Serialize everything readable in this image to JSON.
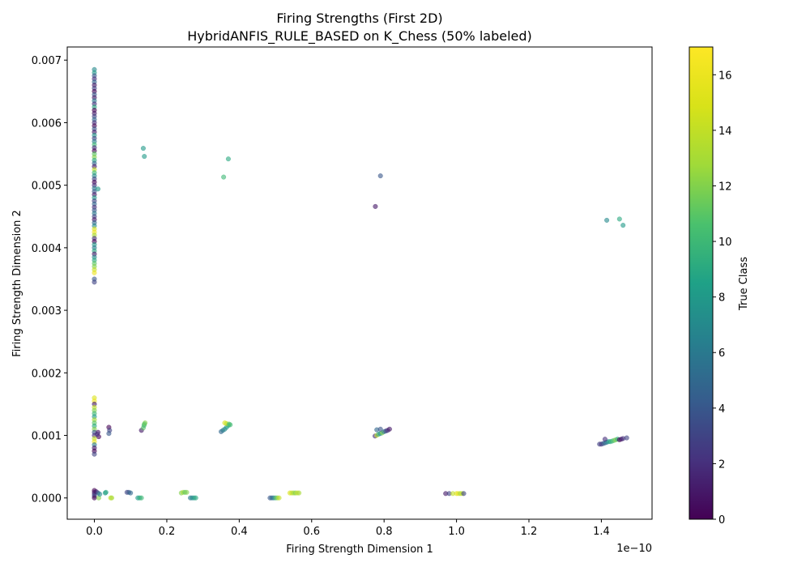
{
  "chart_data": {
    "type": "scatter",
    "title": "Firing Strengths (First 2D)",
    "subtitle": "HybridANFIS_RULE_BASED on K_Chess (50% labeled)",
    "xlabel": "Firing Strength Dimension 1",
    "ylabel": "Firing Strength Dimension 2",
    "x_offset_text": "1e−10",
    "x_scale": 1e-10,
    "xlim": [
      -0.075,
      1.54
    ],
    "ylim": [
      -0.00034,
      0.00721
    ],
    "xticks": [
      {
        "value": 0.0,
        "label": "0.0"
      },
      {
        "value": 0.2,
        "label": "0.2"
      },
      {
        "value": 0.4,
        "label": "0.4"
      },
      {
        "value": 0.6,
        "label": "0.6"
      },
      {
        "value": 0.8,
        "label": "0.8"
      },
      {
        "value": 1.0,
        "label": "1.0"
      },
      {
        "value": 1.2,
        "label": "1.2"
      },
      {
        "value": 1.4,
        "label": "1.4"
      }
    ],
    "yticks": [
      {
        "value": 0.0,
        "label": "0.000"
      },
      {
        "value": 0.001,
        "label": "0.001"
      },
      {
        "value": 0.002,
        "label": "0.002"
      },
      {
        "value": 0.003,
        "label": "0.003"
      },
      {
        "value": 0.004,
        "label": "0.004"
      },
      {
        "value": 0.005,
        "label": "0.005"
      },
      {
        "value": 0.006,
        "label": "0.006"
      },
      {
        "value": 0.007,
        "label": "0.007"
      }
    ],
    "colorbar": {
      "label": "True Class",
      "colormap": "viridis",
      "range": [
        0,
        17
      ],
      "ticks": [
        {
          "value": 0,
          "label": "0"
        },
        {
          "value": 2,
          "label": "2"
        },
        {
          "value": 4,
          "label": "4"
        },
        {
          "value": 6,
          "label": "6"
        },
        {
          "value": 8,
          "label": "8"
        },
        {
          "value": 10,
          "label": "10"
        },
        {
          "value": 12,
          "label": "12"
        },
        {
          "value": 14,
          "label": "14"
        },
        {
          "value": 16,
          "label": "16"
        }
      ]
    },
    "marker_alpha": 0.6,
    "grid": false,
    "points": [
      [
        0.0,
        0.00685,
        7
      ],
      [
        0.0,
        0.0068,
        8
      ],
      [
        0.0,
        0.00675,
        4
      ],
      [
        0.0,
        0.0067,
        2
      ],
      [
        0.0,
        0.00665,
        5
      ],
      [
        0.0,
        0.0066,
        1
      ],
      [
        0.0,
        0.00655,
        3
      ],
      [
        0.0,
        0.0065,
        0
      ],
      [
        0.0,
        0.00645,
        4
      ],
      [
        0.0,
        0.0064,
        1
      ],
      [
        0.0,
        0.00635,
        6
      ],
      [
        0.0,
        0.0063,
        2
      ],
      [
        0.0,
        0.00625,
        9
      ],
      [
        0.0,
        0.0062,
        0
      ],
      [
        0.0,
        0.00615,
        1
      ],
      [
        0.0,
        0.0061,
        3
      ],
      [
        0.0,
        0.00605,
        5
      ],
      [
        0.0,
        0.006,
        2
      ],
      [
        0.0,
        0.00595,
        0
      ],
      [
        0.0,
        0.0059,
        4
      ],
      [
        0.0,
        0.00585,
        1
      ],
      [
        0.0,
        0.0058,
        8
      ],
      [
        0.0,
        0.00575,
        3
      ],
      [
        0.0,
        0.0057,
        6
      ],
      [
        0.0,
        0.00565,
        10
      ],
      [
        0.0,
        0.0056,
        2
      ],
      [
        0.0,
        0.00555,
        0
      ],
      [
        0.0,
        0.0055,
        11
      ],
      [
        0.0,
        0.00545,
        12
      ],
      [
        0.0,
        0.0054,
        9
      ],
      [
        0.0,
        0.00535,
        5
      ],
      [
        0.0,
        0.0053,
        1
      ],
      [
        0.0,
        0.00525,
        14
      ],
      [
        0.0,
        0.0052,
        10
      ],
      [
        0.0,
        0.00515,
        7
      ],
      [
        0.0,
        0.0051,
        3
      ],
      [
        0.0,
        0.00505,
        0
      ],
      [
        0.0,
        0.005,
        2
      ],
      [
        0.0,
        0.00495,
        6
      ],
      [
        0.0,
        0.0049,
        4
      ],
      [
        0.0,
        0.00485,
        1
      ],
      [
        0.0,
        0.0048,
        8
      ],
      [
        0.0,
        0.00475,
        3
      ],
      [
        0.0,
        0.0047,
        5
      ],
      [
        0.0,
        0.00465,
        2
      ],
      [
        0.0,
        0.0046,
        4
      ],
      [
        0.0,
        0.00455,
        6
      ],
      [
        0.0,
        0.0045,
        3
      ],
      [
        0.0,
        0.00445,
        1
      ],
      [
        0.0,
        0.0044,
        5
      ],
      [
        0.0,
        0.00435,
        7
      ],
      [
        0.0,
        0.0043,
        15
      ],
      [
        0.0,
        0.00425,
        16
      ],
      [
        0.0,
        0.0042,
        13
      ],
      [
        0.0,
        0.00415,
        2
      ],
      [
        0.0,
        0.0041,
        0
      ],
      [
        0.0,
        0.00405,
        8
      ],
      [
        0.0,
        0.004,
        6
      ],
      [
        0.0,
        0.00395,
        9
      ],
      [
        0.0,
        0.0039,
        1
      ],
      [
        0.0,
        0.00385,
        7
      ],
      [
        0.0,
        0.0038,
        9
      ],
      [
        0.0,
        0.00375,
        11
      ],
      [
        0.0,
        0.0037,
        12
      ],
      [
        0.0,
        0.00365,
        14
      ],
      [
        0.0,
        0.0036,
        16
      ],
      [
        0.0,
        0.0035,
        4
      ],
      [
        0.0,
        0.00345,
        3
      ],
      [
        0.01,
        0.00494,
        8
      ],
      [
        0.135,
        0.00559,
        8
      ],
      [
        0.138,
        0.00546,
        8
      ],
      [
        0.37,
        0.00542,
        9
      ],
      [
        0.357,
        0.00513,
        10
      ],
      [
        0.79,
        0.00515,
        4
      ],
      [
        0.776,
        0.00466,
        1
      ],
      [
        1.415,
        0.00444,
        7
      ],
      [
        1.45,
        0.00446,
        9
      ],
      [
        1.46,
        0.00436,
        8
      ],
      [
        0.0,
        0.0016,
        15
      ],
      [
        0.0,
        0.00155,
        16
      ],
      [
        0.0,
        0.0015,
        1
      ],
      [
        0.0,
        0.00145,
        14
      ],
      [
        0.0,
        0.0014,
        12
      ],
      [
        0.0,
        0.00135,
        10
      ],
      [
        0.0,
        0.0013,
        8
      ],
      [
        0.0,
        0.00125,
        13
      ],
      [
        0.0,
        0.0012,
        11
      ],
      [
        0.0,
        0.00115,
        9
      ],
      [
        0.0,
        0.0011,
        12
      ],
      [
        0.0,
        0.00105,
        4
      ],
      [
        0.0,
        0.001,
        2
      ],
      [
        0.0,
        0.00095,
        14
      ],
      [
        0.0,
        0.0009,
        16
      ],
      [
        0.0,
        0.00085,
        6
      ],
      [
        0.0,
        0.0008,
        1
      ],
      [
        0.0,
        0.00075,
        0
      ],
      [
        0.0,
        0.0007,
        3
      ],
      [
        0.01,
        0.00105,
        1
      ],
      [
        0.012,
        0.00098,
        0
      ],
      [
        0.008,
        0.00102,
        2
      ],
      [
        0.04,
        0.00113,
        0
      ],
      [
        0.042,
        0.00108,
        3
      ],
      [
        0.04,
        0.00103,
        4
      ],
      [
        0.13,
        0.00108,
        1
      ],
      [
        0.135,
        0.00112,
        11
      ],
      [
        0.137,
        0.00116,
        10
      ],
      [
        0.14,
        0.0012,
        12
      ],
      [
        0.138,
        0.00118,
        11
      ],
      [
        0.35,
        0.00106,
        5
      ],
      [
        0.355,
        0.00108,
        6
      ],
      [
        0.36,
        0.0011,
        7
      ],
      [
        0.365,
        0.00113,
        8
      ],
      [
        0.37,
        0.00116,
        9
      ],
      [
        0.36,
        0.0012,
        15
      ],
      [
        0.365,
        0.00119,
        14
      ],
      [
        0.372,
        0.00118,
        11
      ],
      [
        0.375,
        0.00117,
        10
      ],
      [
        0.775,
        0.00099,
        2
      ],
      [
        0.78,
        0.001,
        14
      ],
      [
        0.785,
        0.00102,
        9
      ],
      [
        0.79,
        0.00103,
        7
      ],
      [
        0.795,
        0.00104,
        12
      ],
      [
        0.8,
        0.00106,
        6
      ],
      [
        0.805,
        0.00107,
        3
      ],
      [
        0.81,
        0.00108,
        2
      ],
      [
        0.815,
        0.0011,
        1
      ],
      [
        0.78,
        0.00109,
        5
      ],
      [
        0.79,
        0.0011,
        4
      ],
      [
        1.395,
        0.00086,
        3
      ],
      [
        1.4,
        0.00086,
        2
      ],
      [
        1.405,
        0.00087,
        4
      ],
      [
        1.41,
        0.00088,
        5
      ],
      [
        1.415,
        0.00089,
        6
      ],
      [
        1.42,
        0.0009,
        8
      ],
      [
        1.425,
        0.0009,
        9
      ],
      [
        1.43,
        0.00091,
        10
      ],
      [
        1.435,
        0.00092,
        11
      ],
      [
        1.44,
        0.00093,
        12
      ],
      [
        1.445,
        0.00094,
        9
      ],
      [
        1.45,
        0.00093,
        0
      ],
      [
        1.455,
        0.00094,
        1
      ],
      [
        1.46,
        0.00095,
        2
      ],
      [
        1.47,
        0.00096,
        3
      ],
      [
        1.41,
        0.00094,
        2
      ],
      [
        0.0,
        0.00012,
        0
      ],
      [
        0.0,
        9e-05,
        1
      ],
      [
        0.0,
        6e-05,
        2
      ],
      [
        0.0,
        3e-05,
        3
      ],
      [
        0.0,
        0.0,
        0
      ],
      [
        0.005,
        0.0001,
        1
      ],
      [
        0.01,
        8e-05,
        4
      ],
      [
        0.012,
        0.0,
        12
      ],
      [
        0.015,
        6e-05,
        7
      ],
      [
        0.03,
        8e-05,
        8
      ],
      [
        0.032,
        9e-05,
        9
      ],
      [
        0.045,
        0.0,
        14
      ],
      [
        0.048,
        0.0,
        13
      ],
      [
        0.09,
        9e-05,
        3
      ],
      [
        0.095,
        9e-05,
        4
      ],
      [
        0.1,
        8e-05,
        5
      ],
      [
        0.12,
        0.0,
        8
      ],
      [
        0.125,
        0.0,
        9
      ],
      [
        0.13,
        0.0,
        10
      ],
      [
        0.24,
        8e-05,
        12
      ],
      [
        0.245,
        9e-05,
        13
      ],
      [
        0.25,
        9e-05,
        11
      ],
      [
        0.255,
        9e-05,
        12
      ],
      [
        0.265,
        0.0,
        6
      ],
      [
        0.27,
        0.0,
        7
      ],
      [
        0.275,
        0.0,
        8
      ],
      [
        0.28,
        0.0,
        9
      ],
      [
        0.485,
        0.0,
        4
      ],
      [
        0.49,
        0.0,
        5
      ],
      [
        0.495,
        0.0,
        6
      ],
      [
        0.5,
        0.0,
        10
      ],
      [
        0.505,
        0.0,
        12
      ],
      [
        0.51,
        0.0,
        14
      ],
      [
        0.54,
        8e-05,
        15
      ],
      [
        0.545,
        8e-05,
        14
      ],
      [
        0.55,
        8e-05,
        13
      ],
      [
        0.555,
        8e-05,
        12
      ],
      [
        0.56,
        8e-05,
        14
      ],
      [
        0.565,
        8e-05,
        13
      ],
      [
        0.97,
        7e-05,
        1
      ],
      [
        0.98,
        7e-05,
        3
      ],
      [
        0.99,
        7e-05,
        14
      ],
      [
        1.0,
        7e-05,
        15
      ],
      [
        1.005,
        7e-05,
        16
      ],
      [
        1.01,
        7e-05,
        13
      ],
      [
        1.015,
        7e-05,
        14
      ],
      [
        1.02,
        7e-05,
        3
      ]
    ]
  }
}
